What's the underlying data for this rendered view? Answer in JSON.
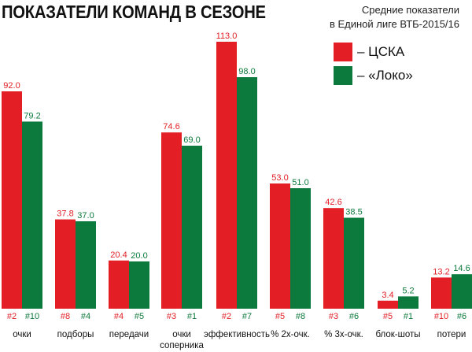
{
  "colors": {
    "cska": "#e31e24",
    "loko": "#0c7a3c"
  },
  "chart_data": {
    "type": "bar",
    "title": "ПОКАЗАТЕЛИ КОМАНД В СЕЗОНЕ",
    "subtitle": [
      "Средние показатели",
      "в Единой лиге ВТБ-2015/16"
    ],
    "legend": [
      "– ЦСКА",
      "– «Локо»"
    ],
    "legend_position": "top-right",
    "grid": false,
    "categories": [
      [
        "очки"
      ],
      [
        "подборы"
      ],
      [
        "передачи"
      ],
      [
        "очки",
        "соперника"
      ],
      [
        "эффективность"
      ],
      [
        "% 2х-очк."
      ],
      [
        "% 3х-очк."
      ],
      [
        "блок-шоты"
      ],
      [
        "потери"
      ]
    ],
    "series": [
      {
        "name": "– ЦСКА",
        "values": [
          92.0,
          37.8,
          20.4,
          74.6,
          113.0,
          53.0,
          42.6,
          3.4,
          13.2
        ],
        "labels": [
          "92.0",
          "37.8",
          "20.4",
          "74.6",
          "113.0",
          "53.0",
          "42.6",
          "3.4",
          "13.2"
        ],
        "ranks": [
          "#2",
          "#8",
          "#4",
          "#3",
          "#2",
          "#5",
          "#3",
          "#5",
          "#10"
        ]
      },
      {
        "name": "– «Локо»",
        "values": [
          79.2,
          37.0,
          20.0,
          69.0,
          98.0,
          51.0,
          38.5,
          5.2,
          14.6
        ],
        "labels": [
          "79.2",
          "37.0",
          "20.0",
          "69.0",
          "98.0",
          "51.0",
          "38.5",
          "5.2",
          "14.6"
        ],
        "ranks": [
          "#10",
          "#4",
          "#5",
          "#1",
          "#7",
          "#8",
          "#6",
          "#1",
          "#6"
        ]
      }
    ]
  }
}
